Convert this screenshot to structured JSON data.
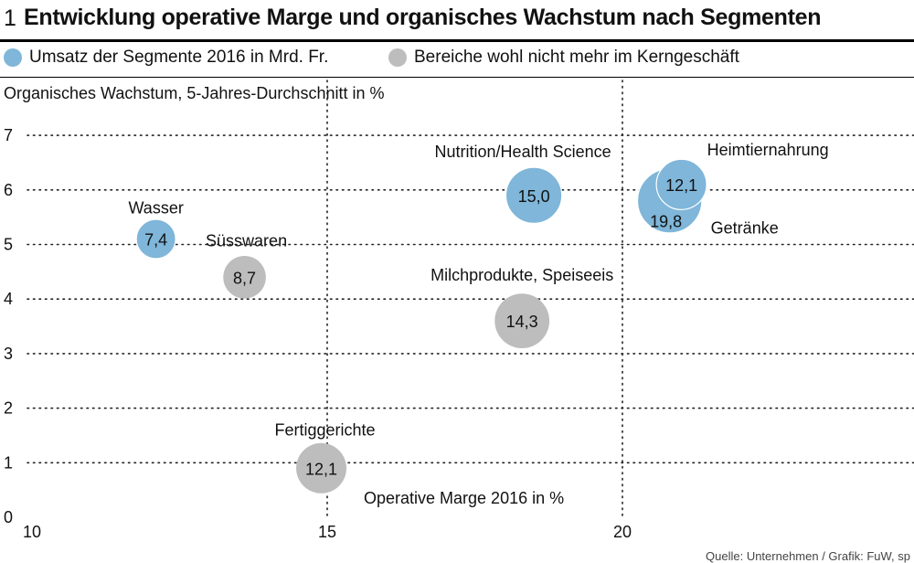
{
  "header": {
    "figure_number": "1",
    "title": "Entwicklung operative Marge und organisches Wachstum nach Segmenten"
  },
  "legend": [
    {
      "label": "Umsatz der Segmente 2016 in Mrd. Fr.",
      "color": "#7fb6d9"
    },
    {
      "label": "Bereiche wohl nicht mehr im Kerngeschäft",
      "color": "#bdbdbd"
    }
  ],
  "source": "Quelle: Unternehmen / Grafik: FuW, sp",
  "chart_data": {
    "type": "scatter",
    "title": "Entwicklung operative Marge und organisches Wachstum nach Segmenten",
    "xlabel": "Operative Marge 2016 in %",
    "ylabel": "Organisches Wachstum, 5-Jahres-Durchschnitt  in %",
    "xlim": [
      10,
      25
    ],
    "ylim": [
      0,
      7
    ],
    "x_ticks": [
      10,
      15,
      20
    ],
    "y_ticks": [
      0,
      1,
      2,
      3,
      4,
      5,
      6,
      7
    ],
    "grid": true,
    "legend_position": "top",
    "series": [
      {
        "name": "Umsatz der Segmente 2016 in Mrd. Fr.",
        "color": "#7fb6d9",
        "points": [
          {
            "label": "Wasser",
            "x": 12.1,
            "y": 5.1,
            "size": 7.4,
            "size_label": "7,4"
          },
          {
            "label": "Nutrition/Health Science",
            "x": 18.5,
            "y": 5.9,
            "size": 15.0,
            "size_label": "15,0"
          },
          {
            "label": "Getränke",
            "x": 20.8,
            "y": 5.8,
            "size": 19.8,
            "size_label": "19,8"
          },
          {
            "label": "Heimtiernahrung",
            "x": 21.0,
            "y": 6.1,
            "size": 12.1,
            "size_label": "12,1"
          }
        ]
      },
      {
        "name": "Bereiche wohl nicht mehr im Kerngeschäft",
        "color": "#bdbdbd",
        "points": [
          {
            "label": "Süsswaren",
            "x": 13.6,
            "y": 4.4,
            "size": 8.7,
            "size_label": "8,7"
          },
          {
            "label": "Milchprodukte, Speiseeis",
            "x": 18.3,
            "y": 3.6,
            "size": 14.3,
            "size_label": "14,3"
          },
          {
            "label": "Fertiggerichte",
            "x": 14.9,
            "y": 0.9,
            "size": 12.1,
            "size_label": "12,1"
          }
        ]
      }
    ]
  }
}
